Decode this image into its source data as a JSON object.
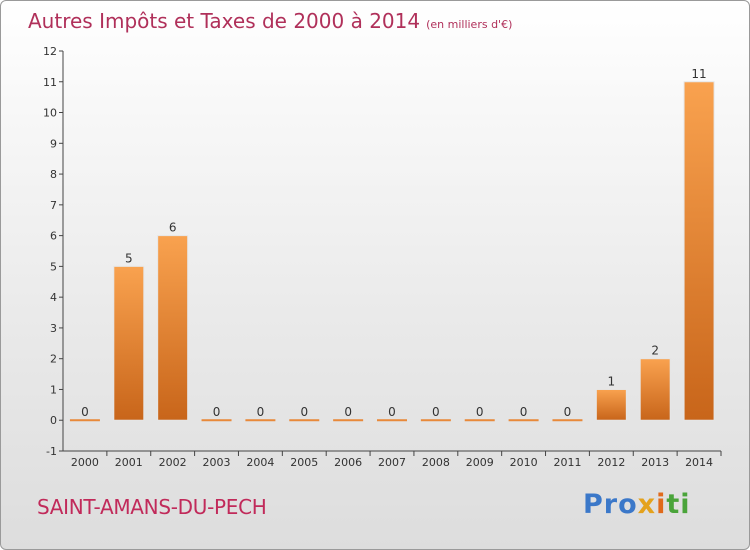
{
  "title": "Autres Impôts et Taxes de 2000 à 2014",
  "subtitle": "(en milliers d'€)",
  "commune": "SAINT-AMANS-DU-PECH",
  "logo": {
    "p1": "Pro",
    "p2": "x",
    "p3": "i",
    "p4": "ti"
  },
  "colors": {
    "bar_light": "#f9a24f",
    "bar_dark": "#c8651a",
    "title": "#b0305a"
  },
  "chart_data": {
    "type": "bar",
    "title": "Autres Impôts et Taxes de 2000 à 2014",
    "subtitle": "(en milliers d'€)",
    "categories": [
      "2000",
      "2001",
      "2002",
      "2003",
      "2004",
      "2005",
      "2006",
      "2007",
      "2008",
      "2009",
      "2010",
      "2011",
      "2012",
      "2013",
      "2014"
    ],
    "values": [
      0,
      5,
      6,
      0,
      0,
      0,
      0,
      0,
      0,
      0,
      0,
      0,
      1,
      2,
      11
    ],
    "ylim": [
      -1,
      12
    ],
    "yticks": [
      -1,
      0,
      1,
      2,
      3,
      4,
      5,
      6,
      7,
      8,
      9,
      10,
      11,
      12
    ],
    "ytick_labels": [
      "-1",
      "0",
      "1",
      "2",
      "3",
      "4",
      "5",
      "6",
      "7",
      "8",
      "9",
      "10",
      "11",
      "12"
    ],
    "grid": false
  }
}
